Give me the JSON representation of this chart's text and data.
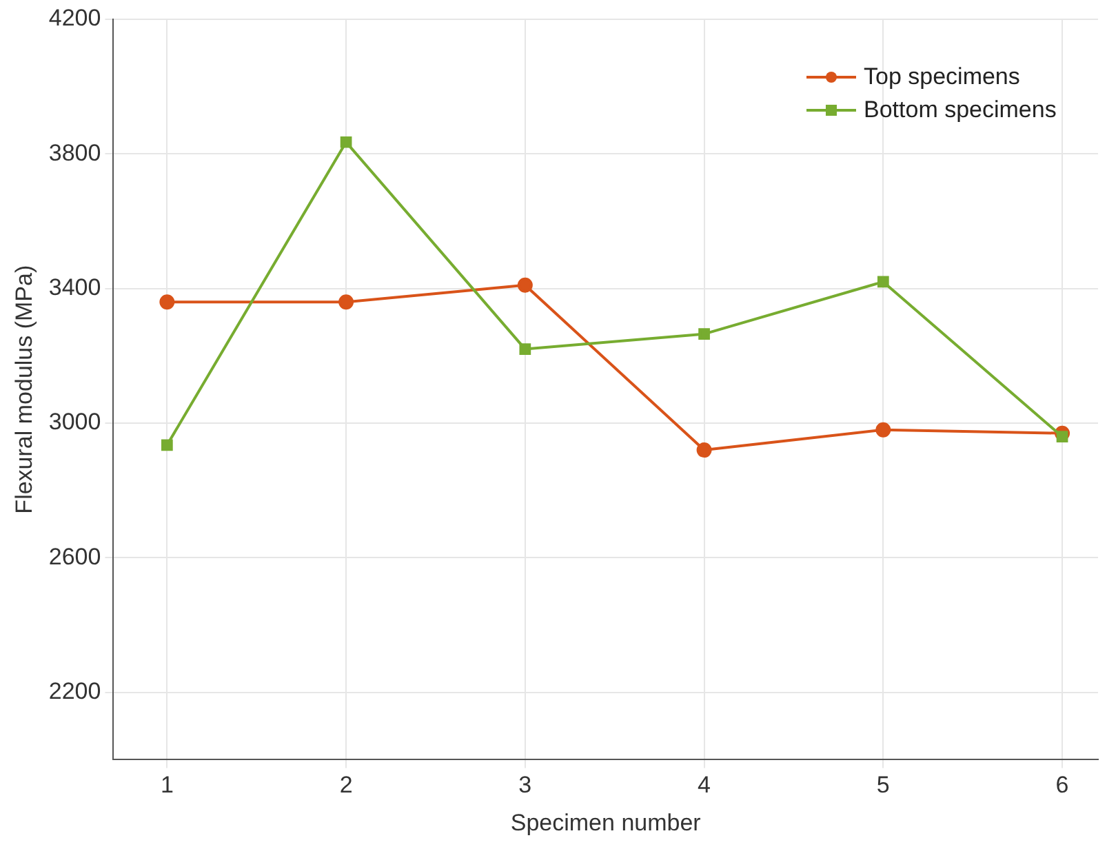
{
  "chart_data": {
    "type": "line",
    "xlabel": "Specimen number",
    "ylabel": "Flexural modulus (MPa)",
    "x": [
      1,
      2,
      3,
      4,
      5,
      6
    ],
    "series": [
      {
        "name": "Top specimens",
        "color": "#d95319",
        "marker": "circle",
        "values": [
          3360,
          3360,
          3410,
          2920,
          2980,
          2970
        ]
      },
      {
        "name": "Bottom specimens",
        "color": "#77ac30",
        "marker": "square",
        "values": [
          2935,
          3835,
          3220,
          3265,
          3420,
          2960
        ]
      }
    ],
    "xlim": [
      0.7,
      6.2
    ],
    "xticks": [
      1,
      2,
      3,
      4,
      5,
      6
    ],
    "ylim": [
      2000,
      4200
    ],
    "yticks": [
      2200,
      2600,
      3000,
      3400,
      3800,
      4200
    ],
    "grid": true,
    "legend": "top right",
    "line_style": "solid"
  }
}
